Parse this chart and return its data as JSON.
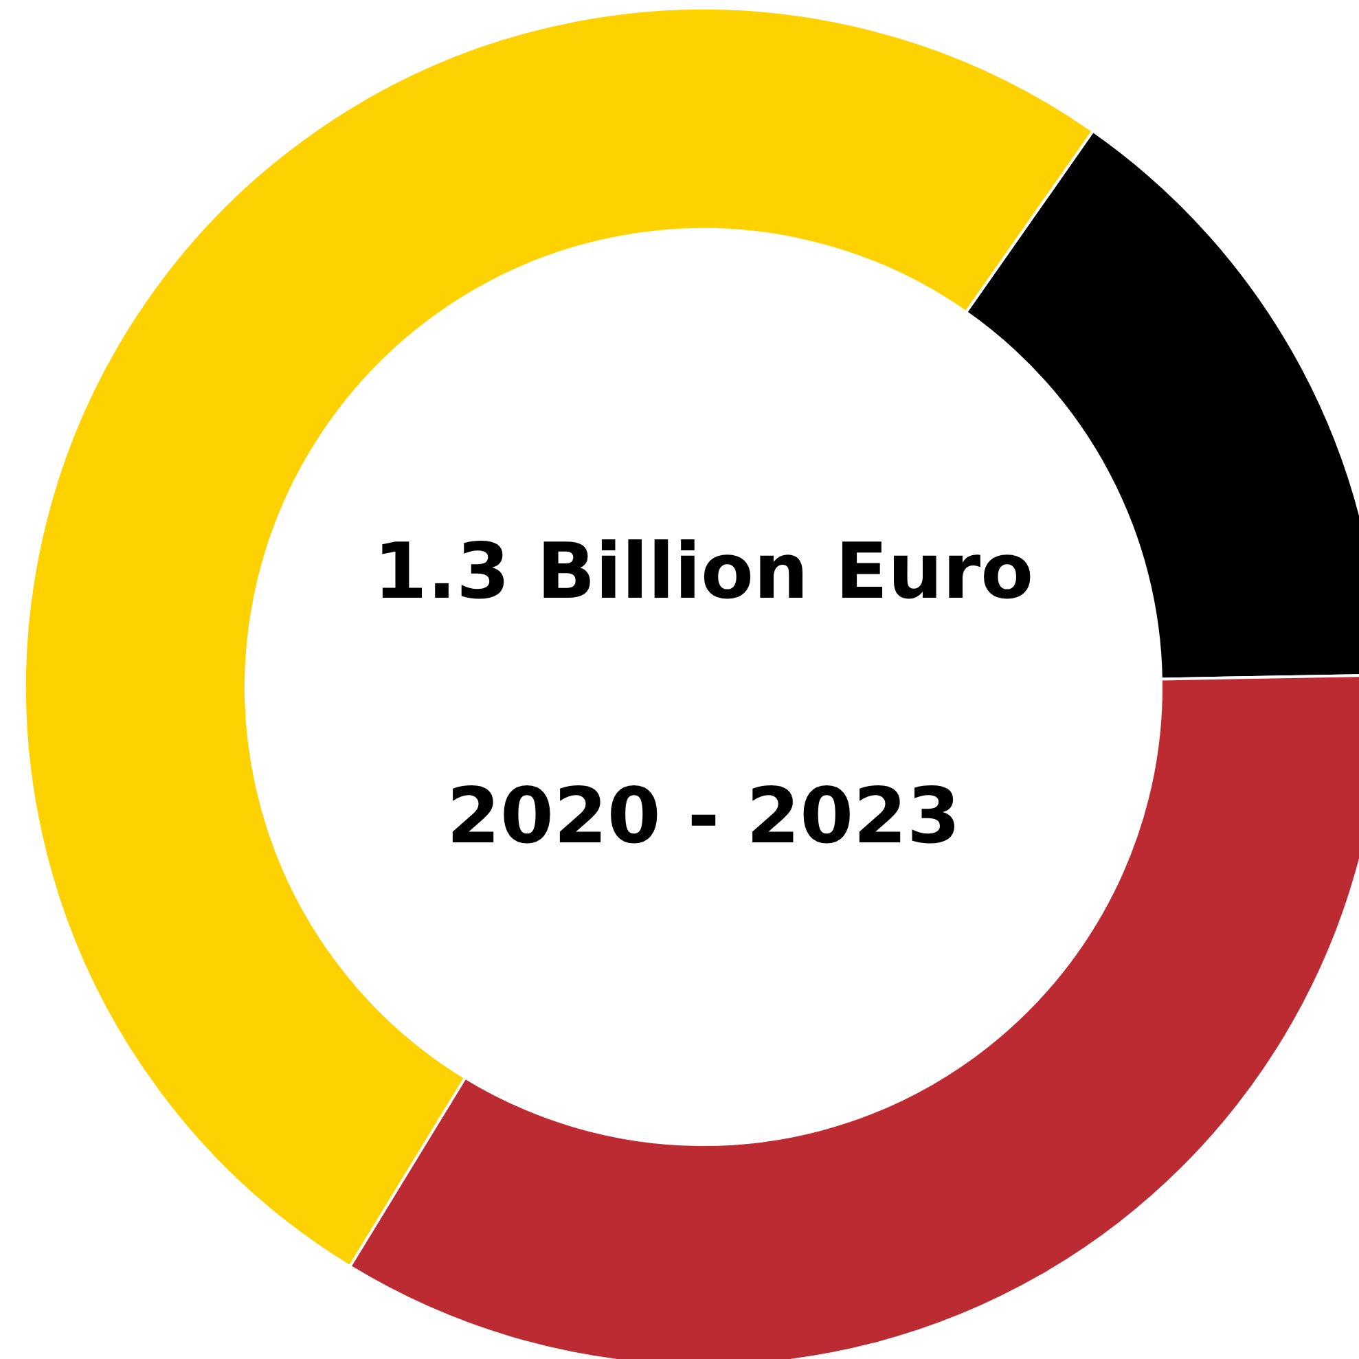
{
  "chart_data": {
    "type": "donut",
    "title": "1.3 Billion Euro",
    "subtitle": "2020 - 2023",
    "categories": [
      null,
      null,
      null
    ],
    "values": [
      15,
      34,
      51
    ],
    "colors": [
      "#000000",
      "#bc2a32",
      "#fed200"
    ]
  }
}
